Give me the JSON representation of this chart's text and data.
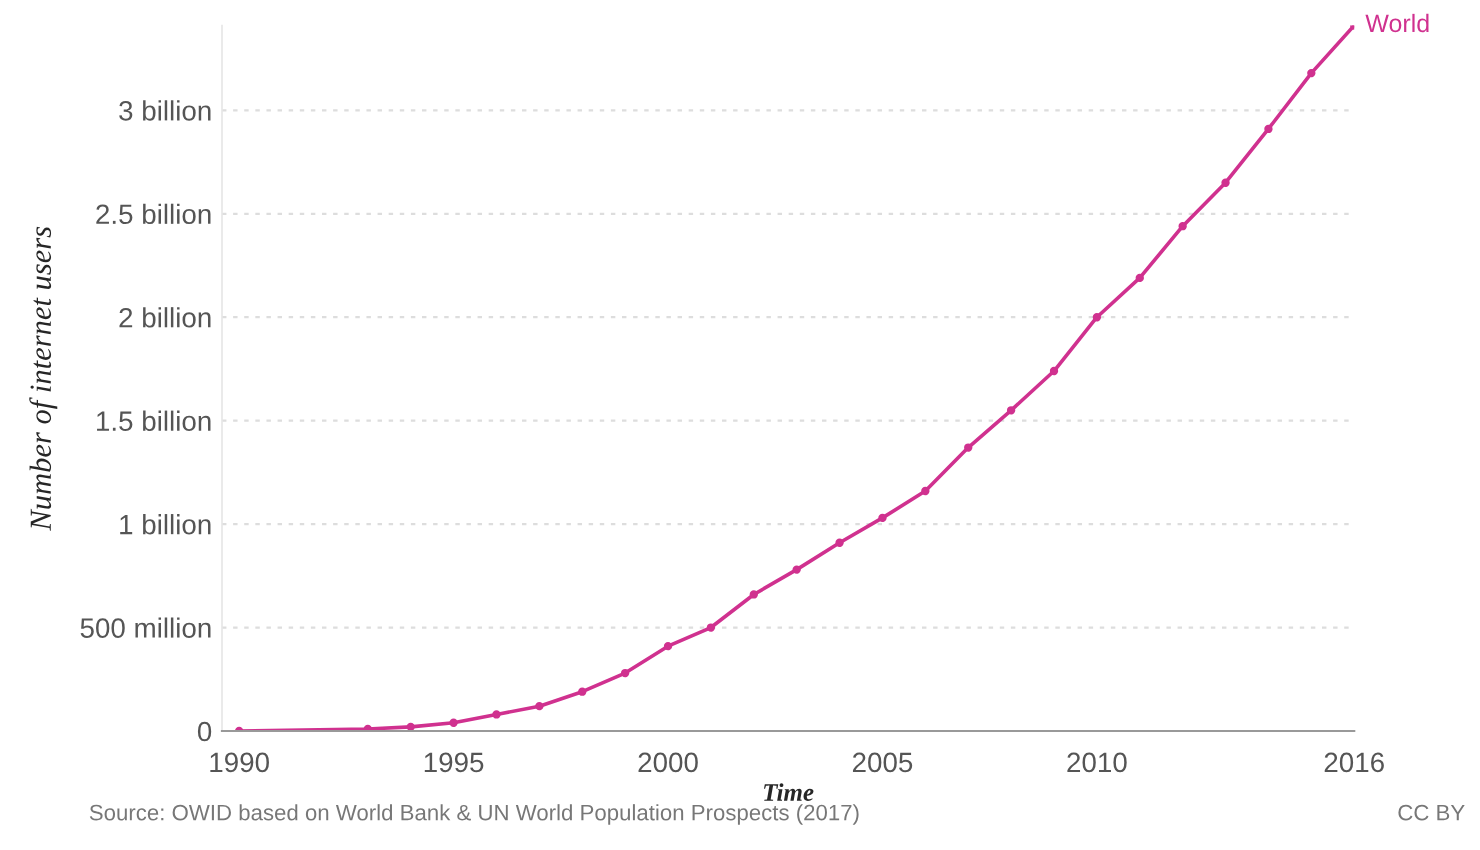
{
  "chart_data": {
    "type": "line",
    "xlabel": "Time",
    "ylabel": "Number of internet users",
    "x": [
      1990,
      1993,
      1994,
      1995,
      1996,
      1997,
      1998,
      1999,
      2000,
      2001,
      2002,
      2003,
      2004,
      2005,
      2006,
      2007,
      2008,
      2009,
      2010,
      2011,
      2012,
      2013,
      2014,
      2015,
      2016
    ],
    "series": [
      {
        "name": "World",
        "color": "#d0318f",
        "values": [
          0,
          10000000,
          20000000,
          40000000,
          80000000,
          120000000,
          190000000,
          280000000,
          410000000,
          500000000,
          660000000,
          780000000,
          910000000,
          1030000000,
          1160000000,
          1370000000,
          1550000000,
          1740000000,
          2000000000,
          2190000000,
          2440000000,
          2650000000,
          2910000000,
          3180000000,
          3410000000
        ]
      }
    ],
    "xlim": [
      1989.6,
      2016
    ],
    "xticks": [
      1990,
      1995,
      2000,
      2005,
      2010,
      2016
    ],
    "ylim": [
      0,
      3410000000
    ],
    "yticks": [
      0,
      {
        "value": 500000000,
        "label": "500 million"
      },
      {
        "value": 1000000000,
        "label": "1 billion"
      },
      {
        "value": 1500000000,
        "label": "1.5 billion"
      },
      {
        "value": 2000000000,
        "label": "2 billion"
      },
      {
        "value": 2500000000,
        "label": "2.5 billion"
      },
      {
        "value": 3000000000,
        "label": "3 billion"
      }
    ],
    "grid": "y",
    "marker": "circle",
    "line_style": "solid",
    "legend": false,
    "annotations": [
      "Source: OWID based on World Bank & UN World Population Prospects (2017)",
      "CC BY"
    ]
  }
}
